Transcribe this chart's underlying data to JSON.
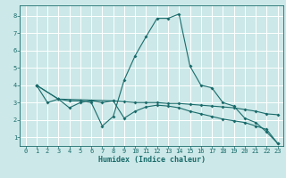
{
  "title": "",
  "xlabel": "Humidex (Indice chaleur)",
  "bg_color": "#cce8e8",
  "line_color": "#1a6b6b",
  "grid_color": "#ffffff",
  "xlim": [
    -0.5,
    23.5
  ],
  "ylim": [
    0.5,
    8.6
  ],
  "xticks": [
    0,
    1,
    2,
    3,
    4,
    5,
    6,
    7,
    8,
    9,
    10,
    11,
    12,
    13,
    14,
    15,
    16,
    17,
    18,
    19,
    20,
    21,
    22,
    23
  ],
  "yticks": [
    1,
    2,
    3,
    4,
    5,
    6,
    7,
    8
  ],
  "line1_x": [
    1,
    2,
    3,
    4,
    5,
    6,
    7,
    8,
    9,
    10,
    11,
    12,
    13,
    14,
    15,
    16,
    17,
    18,
    19,
    20,
    21,
    22,
    23
  ],
  "line1_y": [
    4.0,
    3.0,
    3.2,
    3.1,
    3.1,
    3.0,
    1.65,
    2.2,
    4.3,
    5.7,
    6.8,
    7.85,
    7.85,
    8.1,
    5.1,
    4.0,
    3.85,
    3.0,
    2.8,
    2.1,
    1.85,
    1.3,
    0.65
  ],
  "line2_x": [
    1,
    3,
    4,
    5,
    6,
    7,
    8,
    9,
    10,
    11,
    12,
    13,
    14,
    15,
    16,
    17,
    18,
    19,
    20,
    21,
    22,
    23
  ],
  "line2_y": [
    4.0,
    3.2,
    2.7,
    3.0,
    3.1,
    3.0,
    3.1,
    3.05,
    3.0,
    3.0,
    3.0,
    2.95,
    2.95,
    2.9,
    2.85,
    2.8,
    2.75,
    2.7,
    2.6,
    2.5,
    2.35,
    2.3
  ],
  "line3_x": [
    1,
    3,
    8,
    9,
    10,
    11,
    12,
    13,
    14,
    15,
    16,
    17,
    18,
    19,
    20,
    21,
    22,
    23
  ],
  "line3_y": [
    4.0,
    3.2,
    3.1,
    2.1,
    2.5,
    2.75,
    2.85,
    2.8,
    2.7,
    2.5,
    2.35,
    2.2,
    2.05,
    1.95,
    1.85,
    1.65,
    1.45,
    0.65
  ]
}
